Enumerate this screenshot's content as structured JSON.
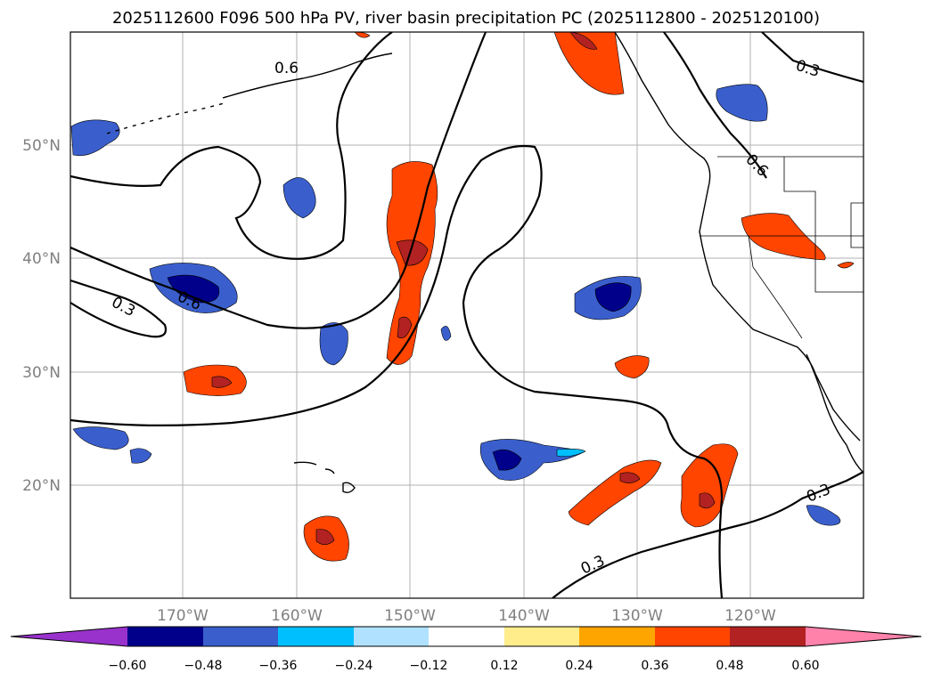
{
  "title": "2025112600 F096 500 hPa PV, river basin precipitation PC (2025112800 - 2025120100)",
  "map": {
    "lon_labels": [
      "170°W",
      "160°W",
      "150°W",
      "140°W",
      "130°W",
      "120°W"
    ],
    "lat_labels": [
      "50°N",
      "40°N",
      "30°N",
      "20°N"
    ],
    "contour_labels": [
      "0.6",
      "0.3",
      "0.6",
      "0.6",
      "0.3",
      "0.3",
      "0.3"
    ]
  },
  "colorbar": {
    "ticks": [
      "−0.60",
      "−0.48",
      "−0.36",
      "−0.24",
      "−0.12",
      "0.12",
      "0.24",
      "0.36",
      "0.48",
      "0.60"
    ],
    "colors": [
      "#9932cc",
      "#00008b",
      "#3a5fcd",
      "#00bfff",
      "#b0e2ff",
      "#ffffff",
      "#ffec8b",
      "#ffa500",
      "#ff4500",
      "#b22222",
      "#ff82ab"
    ]
  },
  "colors": {
    "frame": "#000000",
    "grid": "#b0b0b0",
    "coast": "#000000"
  }
}
